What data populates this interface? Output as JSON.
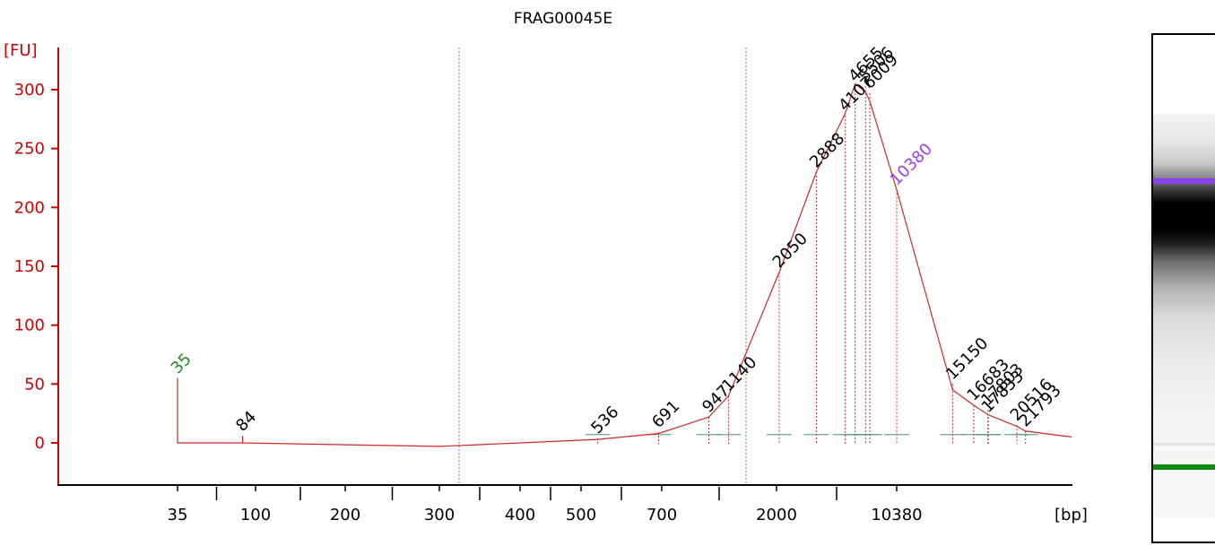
{
  "chart_data": {
    "type": "line",
    "title": "FRAG00045E",
    "ylabel": "[FU]",
    "xlabel": "[bp]",
    "ylim": [
      -35,
      335
    ],
    "y_ticks": [
      0,
      50,
      100,
      150,
      200,
      250,
      300
    ],
    "x_ticks": [
      "35",
      "100",
      "200",
      "300",
      "400",
      "500",
      "700",
      "2000",
      "10380"
    ],
    "x_ticks_unlabeled": 9,
    "colors": {
      "trace": "#cc2a2a",
      "axis": "#d00000",
      "marker": "#1f8a1f",
      "upper_marker": "#9b3ff0",
      "baseline": "#4f8f7f",
      "divider": "#777777"
    },
    "series": [
      {
        "values": [
          [
            35,
            0
          ],
          [
            35,
            55
          ],
          [
            35,
            0
          ],
          [
            84,
            0
          ],
          [
            84,
            6
          ],
          [
            84,
            0
          ],
          [
            300,
            -3
          ],
          [
            400,
            0
          ],
          [
            536,
            3
          ],
          [
            691,
            8
          ],
          [
            947,
            22
          ],
          [
            1140,
            40
          ],
          [
            2050,
            145
          ],
          [
            2888,
            230
          ],
          [
            4107,
            280
          ],
          [
            4655,
            305
          ],
          [
            5506,
            298
          ],
          [
            6009,
            290
          ],
          [
            10380,
            215
          ],
          [
            15150,
            45
          ],
          [
            16683,
            32
          ],
          [
            17803,
            24
          ],
          [
            20516,
            14
          ],
          [
            21793,
            10
          ],
          [
            30000,
            5
          ]
        ]
      }
    ],
    "peak_labels": [
      {
        "text": "35",
        "bp": 35,
        "fu": 55,
        "color": "#1f8a1f"
      },
      {
        "text": "84",
        "bp": 84,
        "fu": 6,
        "color": "#000000"
      },
      {
        "text": "536",
        "bp": 536,
        "fu": 4,
        "color": "#000000"
      },
      {
        "text": "691",
        "bp": 691,
        "fu": 9,
        "color": "#000000"
      },
      {
        "text": "947",
        "bp": 947,
        "fu": 22,
        "color": "#000000"
      },
      {
        "text": "1140",
        "bp": 1140,
        "fu": 40,
        "color": "#000000"
      },
      {
        "text": "2050",
        "bp": 2050,
        "fu": 145,
        "color": "#000000"
      },
      {
        "text": "2888",
        "bp": 2888,
        "fu": 230,
        "color": "#000000"
      },
      {
        "text": "4107",
        "bp": 4107,
        "fu": 278,
        "color": "#000000"
      },
      {
        "text": "4655",
        "bp": 4655,
        "fu": 303,
        "color": "#000000"
      },
      {
        "text": "5506",
        "bp": 5506,
        "fu": 303,
        "color": "#000000"
      },
      {
        "text": "6009",
        "bp": 6009,
        "fu": 297,
        "color": "#000000"
      },
      {
        "text": "10380",
        "bp": 10380,
        "fu": 215,
        "color": "#9b3ff0"
      },
      {
        "text": "15150",
        "bp": 15150,
        "fu": 50,
        "color": "#000000"
      },
      {
        "text": "16683",
        "bp": 16683,
        "fu": 32,
        "color": "#000000"
      },
      {
        "text": "17803",
        "bp": 17803,
        "fu": 28,
        "color": "#000000"
      },
      {
        "text": "17833",
        "bp": 17833,
        "fu": 22,
        "color": "#000000"
      },
      {
        "text": "20516",
        "bp": 20516,
        "fu": 15,
        "color": "#000000"
      },
      {
        "text": "21793",
        "bp": 21793,
        "fu": 10,
        "color": "#000000"
      }
    ],
    "grid": false,
    "legend": "none"
  }
}
